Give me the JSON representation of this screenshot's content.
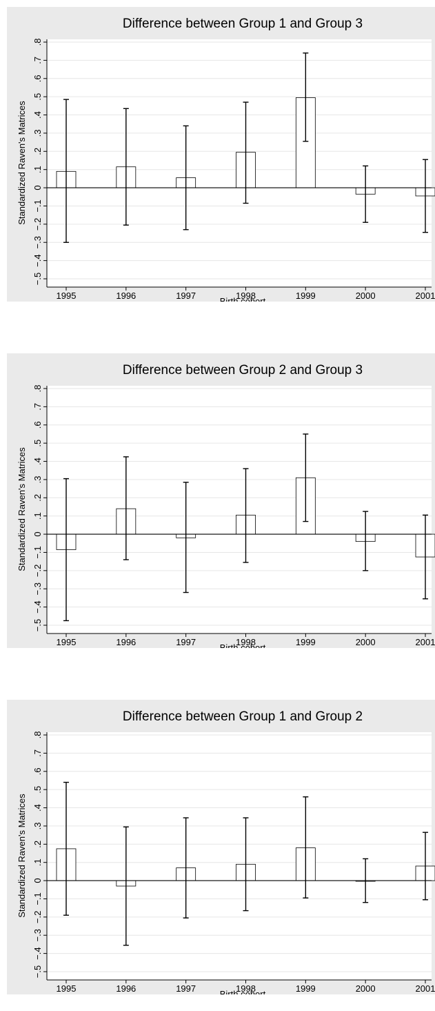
{
  "chart_data": [
    {
      "type": "bar",
      "title": "Difference between Group 1 and Group 3",
      "xlabel": "Birth cohort",
      "ylabel": "Standardized Raven's Matrices",
      "categories": [
        "1995",
        "1996",
        "1997",
        "1998",
        "1999",
        "2000",
        "2001"
      ],
      "values": [
        0.09,
        0.115,
        0.055,
        0.195,
        0.495,
        -0.035,
        -0.045
      ],
      "ci_low": [
        -0.3,
        -0.205,
        -0.23,
        -0.085,
        0.255,
        -0.19,
        -0.245
      ],
      "ci_high": [
        0.485,
        0.435,
        0.34,
        0.47,
        0.74,
        0.12,
        0.155
      ],
      "ylim": [
        -0.5,
        0.8
      ],
      "yticks": [
        "−.5",
        "−.4",
        "−.3",
        "−.2",
        "−.1",
        "0",
        ".1",
        ".2",
        ".3",
        ".4",
        ".5",
        ".6",
        ".7",
        ".8"
      ],
      "ytick_values": [
        -0.5,
        -0.4,
        -0.3,
        -0.2,
        -0.1,
        0,
        0.1,
        0.2,
        0.3,
        0.4,
        0.5,
        0.6,
        0.7,
        0.8
      ],
      "grid": true
    },
    {
      "type": "bar",
      "title": "Difference between Group 2 and Group 3",
      "xlabel": "Birth cohort",
      "ylabel": "Standardized Raven's Matrices",
      "categories": [
        "1995",
        "1996",
        "1997",
        "1998",
        "1999",
        "2000",
        "2001"
      ],
      "values": [
        -0.085,
        0.14,
        -0.02,
        0.105,
        0.31,
        -0.04,
        -0.125
      ],
      "ci_low": [
        -0.475,
        -0.14,
        -0.32,
        -0.155,
        0.07,
        -0.2,
        -0.355
      ],
      "ci_high": [
        0.305,
        0.425,
        0.285,
        0.36,
        0.55,
        0.125,
        0.105
      ],
      "ylim": [
        -0.5,
        0.8
      ],
      "yticks": [
        "−.5",
        "−.4",
        "−.3",
        "−.2",
        "−.1",
        "0",
        ".1",
        ".2",
        ".3",
        ".4",
        ".5",
        ".6",
        ".7",
        ".8"
      ],
      "ytick_values": [
        -0.5,
        -0.4,
        -0.3,
        -0.2,
        -0.1,
        0,
        0.1,
        0.2,
        0.3,
        0.4,
        0.5,
        0.6,
        0.7,
        0.8
      ],
      "grid": true
    },
    {
      "type": "bar",
      "title": "Difference between Group 1 and Group 2",
      "xlabel": "Birth cohort",
      "ylabel": "Standardized Raven's Matrices",
      "categories": [
        "1995",
        "1996",
        "1997",
        "1998",
        "1999",
        "2000",
        "2001"
      ],
      "values": [
        0.175,
        -0.03,
        0.07,
        0.09,
        0.18,
        0.0,
        0.08
      ],
      "ci_low": [
        -0.19,
        -0.355,
        -0.205,
        -0.165,
        -0.095,
        -0.12,
        -0.105
      ],
      "ci_high": [
        0.54,
        0.295,
        0.345,
        0.345,
        0.46,
        0.12,
        0.265
      ],
      "ylim": [
        -0.5,
        0.8
      ],
      "yticks": [
        "−.5",
        "−.4",
        "−.3",
        "−.2",
        "−.1",
        "0",
        ".1",
        ".2",
        ".3",
        ".4",
        ".5",
        ".6",
        ".7",
        ".8"
      ],
      "ytick_values": [
        -0.5,
        -0.4,
        -0.3,
        -0.2,
        -0.1,
        0,
        0.1,
        0.2,
        0.3,
        0.4,
        0.5,
        0.6,
        0.7,
        0.8
      ],
      "grid": true
    }
  ],
  "colors": {
    "panel_background": "#eaeaea",
    "plot_background": "#ffffff",
    "bar_fill": "#ffffff",
    "bar_stroke": "#000000",
    "grid": "#e6e6e6",
    "axis": "#000000"
  }
}
